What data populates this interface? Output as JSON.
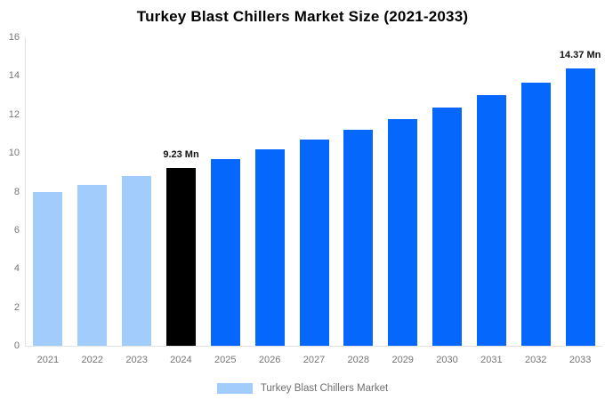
{
  "title": "Turkey Blast Chillers Market Size (2021-2033)",
  "legend": {
    "label": "Turkey Blast Chillers Market",
    "swatch_color": "#a2ccfb"
  },
  "colors": {
    "historical_bar": "#a2ccfb",
    "base_year_bar": "#000000",
    "forecast_bar": "#0667fc",
    "axis_line": "#e2e2e2",
    "tick_label": "#757575",
    "annotation_text": "#111111",
    "legend_text": "#6e6e6e",
    "background": "#ffffff"
  },
  "chart_data": {
    "type": "bar",
    "title": "Turkey Blast Chillers Market Size (2021-2033)",
    "unit": "Mn",
    "categories": [
      "2021",
      "2022",
      "2023",
      "2024",
      "2025",
      "2026",
      "2027",
      "2028",
      "2029",
      "2030",
      "2031",
      "2032",
      "2033"
    ],
    "values": [
      7.97,
      8.37,
      8.79,
      9.23,
      9.69,
      10.18,
      10.69,
      11.22,
      11.78,
      12.37,
      12.99,
      13.64,
      14.37
    ],
    "bar_colors": [
      "#a2ccfb",
      "#a2ccfb",
      "#a2ccfb",
      "#000000",
      "#0667fc",
      "#0667fc",
      "#0667fc",
      "#0667fc",
      "#0667fc",
      "#0667fc",
      "#0667fc",
      "#0667fc",
      "#0667fc"
    ],
    "annotations": [
      {
        "category": "2024",
        "text": "9.23 Mn"
      },
      {
        "category": "2033",
        "text": "14.37 Mn"
      }
    ],
    "xlabel": "",
    "ylabel": "",
    "ylim": [
      0,
      16
    ],
    "y_ticks": [
      0,
      2,
      4,
      6,
      8,
      10,
      12,
      14,
      16
    ],
    "grid": false,
    "legend_position": "bottom"
  }
}
